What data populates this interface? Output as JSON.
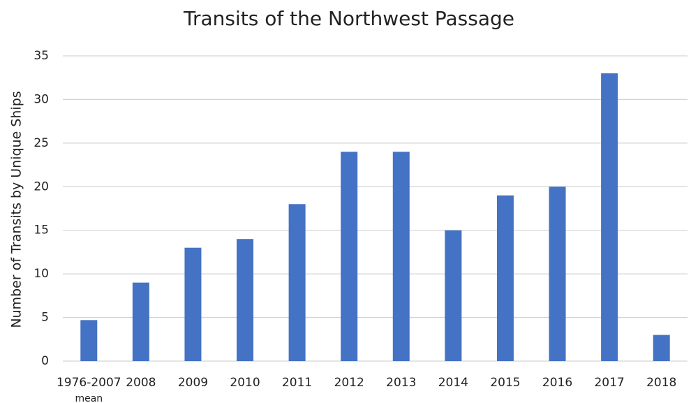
{
  "chart_data": {
    "type": "bar",
    "title": "Transits of the Northwest Passage",
    "y_label": "Number of Transits by Unique Ships",
    "categories": [
      "1976-2007 mean",
      "2008",
      "2009",
      "2010",
      "2011",
      "2012",
      "2013",
      "2014",
      "2015",
      "2016",
      "2017",
      "2018"
    ],
    "values": [
      4.7,
      9,
      13,
      14,
      18,
      24,
      24,
      15,
      19,
      20,
      33,
      3
    ],
    "color": "#4472c4",
    "ylim": [
      0,
      35
    ],
    "yticks": [
      0,
      5,
      10,
      15,
      20,
      25,
      30,
      35
    ],
    "grid": true
  }
}
